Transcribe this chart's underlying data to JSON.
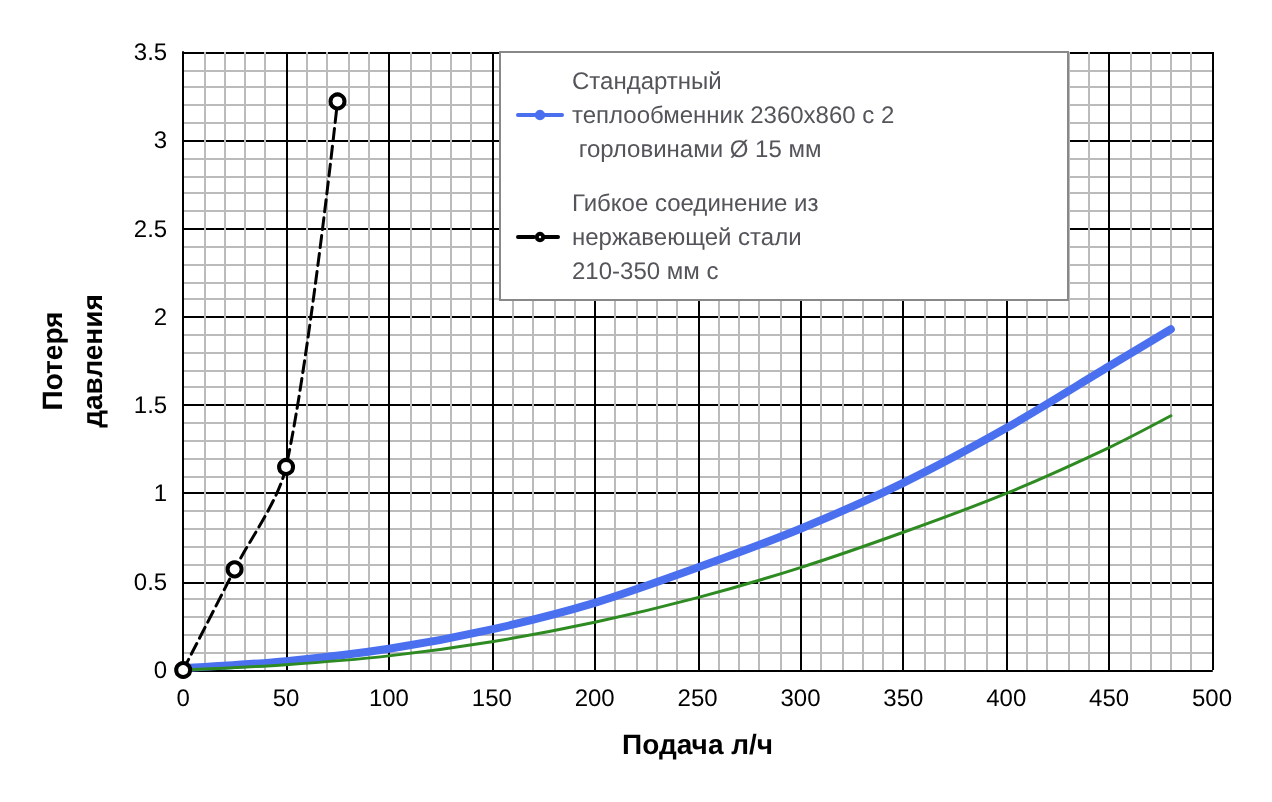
{
  "chart_data": {
    "type": "line",
    "xlabel": "Подача л/ч",
    "ylabel": "Потеря давления",
    "xlim": [
      0,
      500
    ],
    "xticks": [
      0,
      50,
      100,
      150,
      200,
      250,
      300,
      350,
      400,
      450,
      500
    ],
    "ylim": [
      0,
      3.5
    ],
    "yticks": [
      0,
      0.5,
      1,
      1.5,
      2,
      2.5,
      3,
      3.5
    ],
    "grid": true,
    "legend": "top",
    "series": [
      {
        "name": "Стандартный теплообменник 2360x860 с 2 горловинами Ø 15 мм",
        "color": "#4a70f0",
        "x": [
          0,
          50,
          100,
          150,
          200,
          250,
          300,
          350,
          400,
          450,
          480
        ],
        "values": [
          0.01,
          0.05,
          0.12,
          0.23,
          0.38,
          0.58,
          0.8,
          1.06,
          1.37,
          1.72,
          1.93
        ],
        "marker": "none",
        "line_style": "solid"
      },
      {
        "color": "#2e8b22",
        "x": [
          0,
          50,
          100,
          150,
          200,
          250,
          300,
          350,
          400,
          450,
          480
        ],
        "values": [
          0,
          0.03,
          0.08,
          0.16,
          0.27,
          0.41,
          0.58,
          0.78,
          1.0,
          1.26,
          1.44
        ],
        "marker": "none",
        "line_style": "solid"
      },
      {
        "name": "Гибкое соединение из нержавеющей стали 210-350 мм с",
        "color": "#000000",
        "x": [
          0,
          25,
          50,
          75
        ],
        "values": [
          0,
          0.57,
          1.15,
          3.22
        ],
        "marker": "circle",
        "line_style": "dashed"
      }
    ]
  }
}
